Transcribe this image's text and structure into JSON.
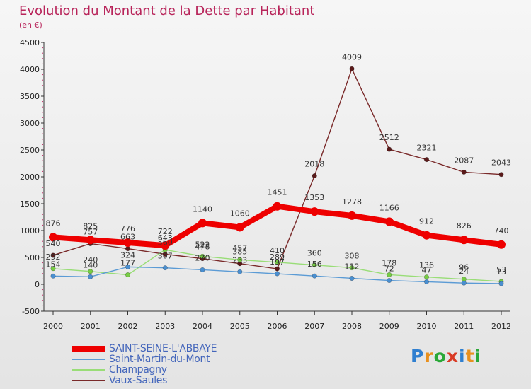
{
  "title": "Evolution du Montant de la Dette par Habitant",
  "subtitle": "(en €)",
  "logo_text": "Proxiti",
  "logo_colors": [
    "#2f7fd0",
    "#e8901e",
    "#2aa838",
    "#d93a24",
    "#2f7fd0",
    "#e8901e",
    "#2aa838"
  ],
  "chart_data": {
    "type": "line",
    "x": [
      "2000",
      "2001",
      "2002",
      "2003",
      "2004",
      "2005",
      "2006",
      "2007",
      "2008",
      "2009",
      "2010",
      "2011",
      "2012"
    ],
    "ylim": [
      -500,
      4500
    ],
    "yticks": [
      -500,
      0,
      500,
      1000,
      1500,
      2000,
      2500,
      3000,
      3500,
      4000,
      4500
    ],
    "grid": false,
    "legend_position": "bottom-left",
    "series": [
      {
        "name": "SAINT-SEINE-L'ABBAYE",
        "color": "#ee0000",
        "values": [
          876,
          825,
          776,
          722,
          1140,
          1060,
          1451,
          1353,
          1278,
          1166,
          912,
          826,
          740
        ]
      },
      {
        "name": "Saint-Martin-du-Mont",
        "color": "#5b9bd5",
        "values": [
          154,
          140,
          324,
          307,
          270,
          233,
          197,
          156,
          112,
          72,
          47,
          24,
          13
        ]
      },
      {
        "name": "Champagny",
        "color": "#99dd77",
        "values": [
          292,
          240,
          177,
          643,
          522,
          457,
          410,
          360,
          308,
          178,
          136,
          96,
          53
        ]
      },
      {
        "name": "Vaux-Saules",
        "color": "#7a2a2a",
        "values": [
          540,
          757,
          663,
          560,
          478,
          385,
          289,
          2018,
          4009,
          2512,
          2321,
          2087,
          2043
        ]
      }
    ]
  }
}
